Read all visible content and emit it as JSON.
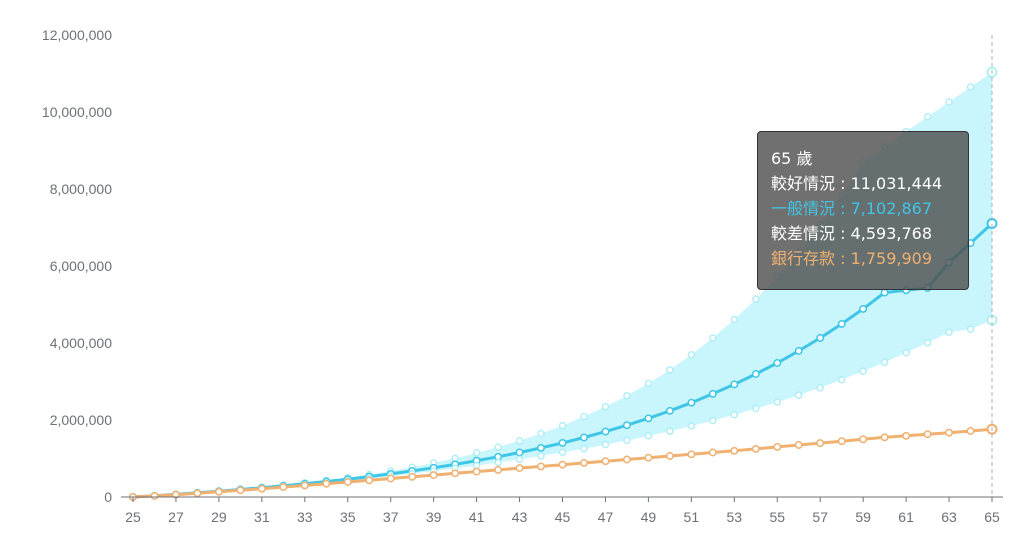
{
  "chart_data": {
    "type": "line",
    "x": [
      25,
      26,
      27,
      28,
      29,
      30,
      31,
      32,
      33,
      34,
      35,
      36,
      37,
      38,
      39,
      40,
      41,
      42,
      43,
      44,
      45,
      46,
      47,
      48,
      49,
      50,
      51,
      52,
      53,
      54,
      55,
      56,
      57,
      58,
      59,
      60,
      61,
      62,
      63,
      64,
      65
    ],
    "xticks": [
      "25",
      "27",
      "29",
      "31",
      "33",
      "35",
      "37",
      "39",
      "41",
      "43",
      "45",
      "47",
      "49",
      "51",
      "53",
      "55",
      "57",
      "59",
      "61",
      "63",
      "65"
    ],
    "yticks": [
      "0",
      "2,000,000",
      "4,000,000",
      "6,000,000",
      "8,000,000",
      "10,000,000",
      "12,000,000"
    ],
    "ylim": [
      0,
      12000000
    ],
    "xlim": [
      25,
      65
    ],
    "grid": false,
    "series": [
      {
        "name": "較好情況",
        "color": "#a8ecf5",
        "values": [
          0,
          30000,
          70000,
          110000,
          155000,
          200000,
          250000,
          305000,
          365000,
          430000,
          505000,
          585000,
          675000,
          775000,
          885000,
          1005000,
          1145000,
          1295000,
          1460000,
          1650000,
          1855000,
          2090000,
          2345000,
          2630000,
          2950000,
          3300000,
          3695000,
          4130000,
          4610000,
          5140000,
          5720000,
          6365000,
          7075000,
          7850000,
          8700000,
          9090000,
          9490000,
          9880000,
          10260000,
          10650000,
          11031444
        ]
      },
      {
        "name": "一般情況",
        "color": "#3fc6e6",
        "values": [
          0,
          30000,
          68000,
          108000,
          150000,
          195000,
          242000,
          292000,
          345000,
          402000,
          463000,
          530000,
          600000,
          677000,
          759000,
          847000,
          943000,
          1045000,
          1155000,
          1275000,
          1405000,
          1545000,
          1700000,
          1865000,
          2045000,
          2240000,
          2450000,
          2680000,
          2925000,
          3195000,
          3480000,
          3795000,
          4130000,
          4495000,
          4885000,
          5310000,
          5370000,
          5430000,
          6090000,
          6595000,
          7102867
        ]
      },
      {
        "name": "較差情況",
        "color": "#a8ecf5",
        "values": [
          0,
          28000,
          65000,
          103000,
          142000,
          182000,
          226000,
          272000,
          320000,
          372000,
          425000,
          482000,
          542000,
          605000,
          672000,
          742000,
          815000,
          895000,
          978000,
          1065000,
          1158000,
          1255000,
          1360000,
          1470000,
          1588000,
          1710000,
          1845000,
          1985000,
          2135000,
          2295000,
          2465000,
          2645000,
          2840000,
          3045000,
          3265000,
          3500000,
          3745000,
          4005000,
          4280000,
          4360000,
          4593768
        ]
      },
      {
        "name": "銀行存款",
        "color": "#f0b070",
        "values": [
          0,
          28000,
          60000,
          95000,
          135000,
          175000,
          215000,
          258000,
          300000,
          345000,
          390000,
          435000,
          480000,
          525000,
          570000,
          615000,
          660000,
          705000,
          750000,
          795000,
          840000,
          885000,
          930000,
          975000,
          1020000,
          1065000,
          1110000,
          1155000,
          1200000,
          1250000,
          1300000,
          1350000,
          1400000,
          1450000,
          1500000,
          1550000,
          1590000,
          1630000,
          1670000,
          1715000,
          1759909
        ]
      }
    ]
  },
  "tooltip": {
    "title": "65 歲",
    "rows": [
      {
        "label": "較好情況 : 11,031,444",
        "color": "#ffffff"
      },
      {
        "label": "一般情況 : 7,102,867",
        "color": "#3fc6e6"
      },
      {
        "label": "較差情況 : 4,593,768",
        "color": "#ffffff"
      },
      {
        "label": "銀行存款 : 1,759,909",
        "color": "#f0b070"
      }
    ]
  }
}
